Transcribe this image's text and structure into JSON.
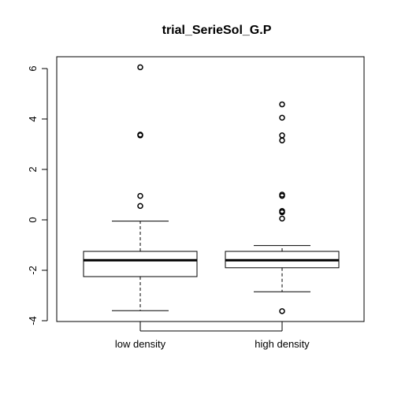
{
  "chart_data": {
    "type": "boxplot",
    "title": "trial_SerieSol_G.P",
    "xlabel": "",
    "ylabel": "",
    "ylim": [
      -4,
      6.2
    ],
    "yticks": [
      -4,
      -2,
      0,
      2,
      4,
      6
    ],
    "ytick_labels": [
      "-4",
      "-2",
      "0",
      "2",
      "4",
      "6"
    ],
    "grid": false,
    "categories": [
      "low density",
      "high density"
    ],
    "boxes": [
      {
        "name": "low density",
        "whisker_low": -3.6,
        "q1": -2.25,
        "median": -1.6,
        "q3": -1.25,
        "whisker_high": -0.05,
        "outliers": [
          0.55,
          0.95,
          3.35,
          3.38,
          6.05
        ]
      },
      {
        "name": "high density",
        "whisker_low": -2.85,
        "q1": -1.9,
        "median": -1.6,
        "q3": -1.25,
        "whisker_high": -1.02,
        "outliers": [
          -3.62,
          0.05,
          0.3,
          0.35,
          0.95,
          1.0,
          3.15,
          3.35,
          4.05,
          4.58
        ]
      }
    ]
  }
}
